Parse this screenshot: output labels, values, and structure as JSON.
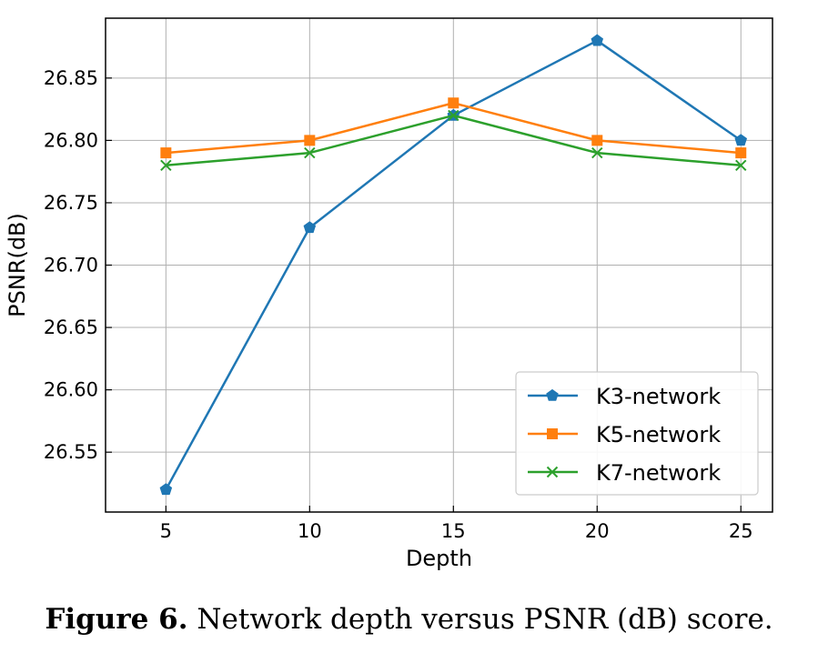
{
  "chart_data": {
    "type": "line",
    "xlabel": "Depth",
    "ylabel": "PSNR(dB)",
    "x": [
      5,
      10,
      15,
      20,
      25
    ],
    "xticks": [
      "5",
      "10",
      "15",
      "20",
      "25"
    ],
    "xlim": [
      2.9,
      26.1
    ],
    "ylim": [
      26.502,
      26.898
    ],
    "yticks": [
      "26.55",
      "26.60",
      "26.65",
      "26.70",
      "26.75",
      "26.80",
      "26.85"
    ],
    "ytick_values": [
      26.55,
      26.6,
      26.65,
      26.7,
      26.75,
      26.8,
      26.85
    ],
    "grid": true,
    "legend_position": "lower-right",
    "series": [
      {
        "name": "K3-network",
        "values": [
          26.52,
          26.73,
          26.82,
          26.88,
          26.8
        ],
        "color": "#1f77b4",
        "marker": "pentagon"
      },
      {
        "name": "K5-network",
        "values": [
          26.79,
          26.8,
          26.83,
          26.8,
          26.79
        ],
        "color": "#ff7f0e",
        "marker": "square"
      },
      {
        "name": "K7-network",
        "values": [
          26.78,
          26.79,
          26.82,
          26.79,
          26.78
        ],
        "color": "#2ca02c",
        "marker": "x"
      }
    ]
  },
  "caption": {
    "label": "Figure 6.",
    "text": " Network depth versus PSNR (dB) score."
  }
}
